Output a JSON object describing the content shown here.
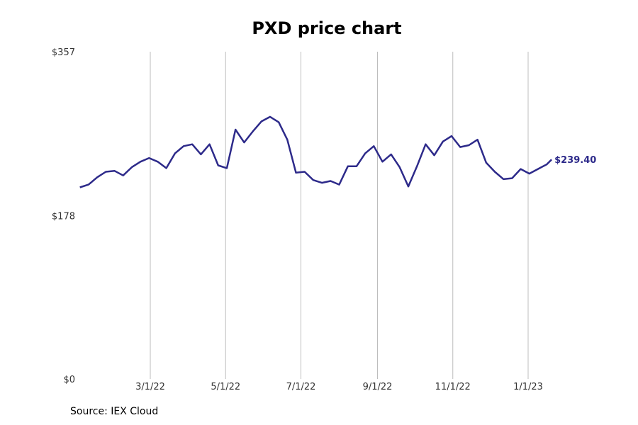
{
  "chart_data": {
    "type": "line",
    "title": "PXD price chart",
    "xlabel": "",
    "ylabel": "",
    "ylim": [
      0,
      357
    ],
    "yticks": [
      "$0",
      "$178",
      "$357"
    ],
    "ytick_values": [
      0,
      178,
      357
    ],
    "xticks": [
      "3/1/22",
      "5/1/22",
      "7/1/22",
      "9/1/22",
      "11/1/22",
      "1/1/23"
    ],
    "xtick_dates": [
      "2022-03-01",
      "2022-05-01",
      "2022-07-01",
      "2022-09-01",
      "2022-11-01",
      "2023-01-01"
    ],
    "grid": "vertical",
    "line_color": "#2d2a8a",
    "end_label": "$239.40",
    "series": [
      {
        "x": [
          "2022-01-03",
          "2022-01-10",
          "2022-01-17",
          "2022-01-24",
          "2022-01-31",
          "2022-02-07",
          "2022-02-14",
          "2022-02-21",
          "2022-02-28",
          "2022-03-07",
          "2022-03-14",
          "2022-03-21",
          "2022-03-28",
          "2022-04-04",
          "2022-04-11",
          "2022-04-18",
          "2022-04-25",
          "2022-05-02",
          "2022-05-09",
          "2022-05-16",
          "2022-05-23",
          "2022-05-30",
          "2022-06-06",
          "2022-06-13",
          "2022-06-20",
          "2022-06-27",
          "2022-07-04",
          "2022-07-11",
          "2022-07-18",
          "2022-07-25",
          "2022-08-01",
          "2022-08-08",
          "2022-08-15",
          "2022-08-22",
          "2022-08-29",
          "2022-09-05",
          "2022-09-12",
          "2022-09-19",
          "2022-09-26",
          "2022-10-03",
          "2022-10-10",
          "2022-10-17",
          "2022-10-24",
          "2022-10-31",
          "2022-11-07",
          "2022-11-14",
          "2022-11-21",
          "2022-11-28",
          "2022-12-05",
          "2022-12-12",
          "2022-12-19",
          "2022-12-26",
          "2023-01-02",
          "2023-01-09",
          "2023-01-16",
          "2023-01-20"
        ],
        "y": [
          209,
          212,
          220,
          226,
          227,
          222,
          231,
          237,
          241,
          237,
          230,
          246,
          254,
          256,
          245,
          256,
          233,
          230,
          272,
          258,
          270,
          281,
          286,
          280,
          261,
          225,
          226,
          217,
          214,
          216,
          212,
          232,
          232,
          246,
          254,
          237,
          245,
          231,
          210,
          232,
          256,
          244,
          259,
          265,
          253,
          255,
          261,
          236,
          226,
          218,
          219,
          229,
          224,
          229,
          234,
          239.4
        ]
      }
    ]
  },
  "source": "Source: IEX Cloud"
}
